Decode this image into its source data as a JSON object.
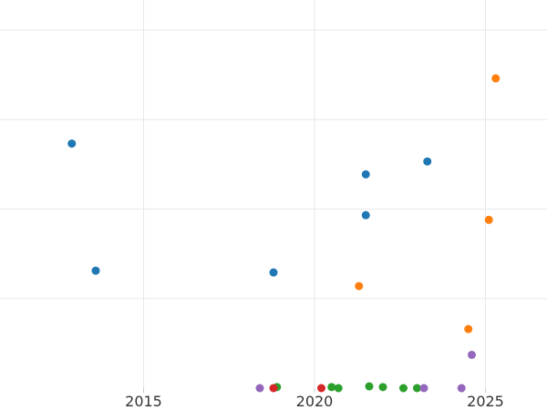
{
  "chart_data": {
    "type": "scatter",
    "title": "",
    "xlabel": "",
    "ylabel": "",
    "x_ticks": [
      2015,
      2020,
      2025
    ],
    "xlim": [
      2010.8,
      2026.8
    ],
    "ylim": [
      0,
      1
    ],
    "y_gridlines": [
      0.25,
      0.5,
      0.75,
      1.0
    ],
    "grid": true,
    "colors": [
      "#1f77b4",
      "#ff7f0e",
      "#2ca02c",
      "#d62728",
      "#9467bd"
    ],
    "series": [
      {
        "x": [
          2012.9,
          2013.6,
          2018.8,
          2021.5,
          2021.5,
          2023.3
        ],
        "y": [
          0.683,
          0.328,
          0.323,
          0.483,
          0.597,
          0.633
        ]
      },
      {
        "x": [
          2021.3,
          2024.5,
          2025.1,
          2025.3
        ],
        "y": [
          0.285,
          0.165,
          0.47,
          0.865
        ]
      },
      {
        "x": [
          2018.9,
          2020.5,
          2020.7,
          2021.6,
          2022.0,
          2022.6,
          2023.0
        ],
        "y": [
          0.003,
          0.003,
          0.0,
          0.005,
          0.003,
          0.0,
          0.0
        ]
      },
      {
        "x": [
          2018.8,
          2020.2
        ],
        "y": [
          0.0,
          0.0
        ]
      },
      {
        "x": [
          2018.4,
          2023.2,
          2024.3,
          2024.6
        ],
        "y": [
          0.0,
          0.0,
          0.0,
          0.093
        ]
      }
    ]
  }
}
